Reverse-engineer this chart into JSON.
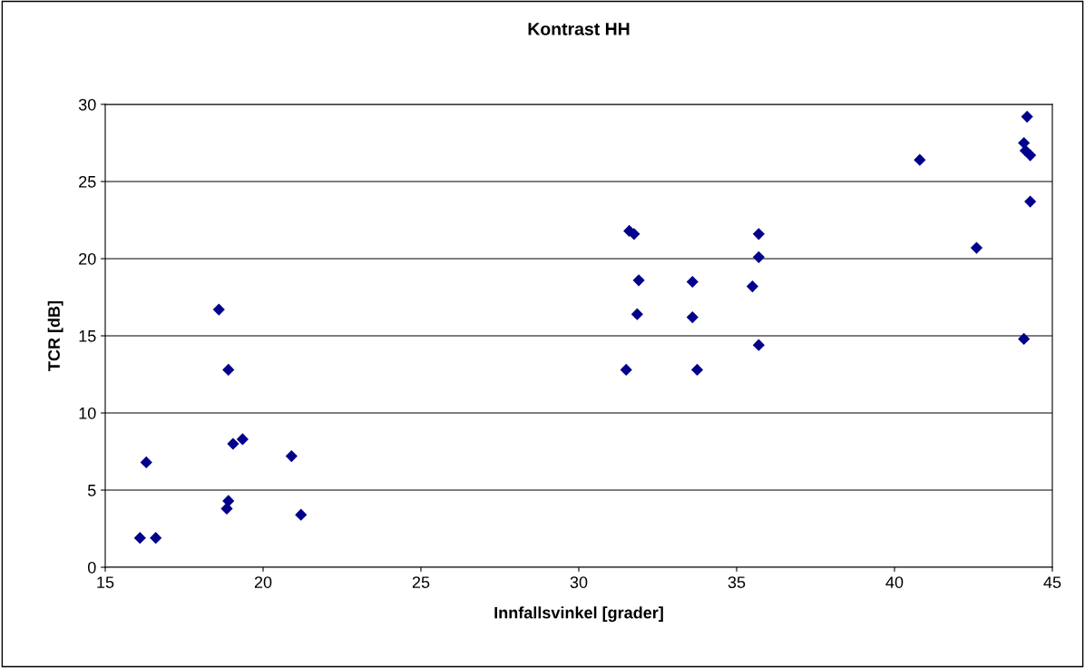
{
  "chart_data": {
    "type": "scatter",
    "title": "Kontrast HH",
    "xlabel": "Innfallsvinkel [grader]",
    "ylabel": "TCR [dB]",
    "x": [
      16.1,
      16.3,
      16.6,
      18.6,
      18.9,
      18.85,
      18.9,
      19.05,
      19.35,
      20.9,
      21.2,
      31.5,
      31.6,
      31.75,
      31.9,
      31.85,
      33.6,
      33.6,
      33.75,
      35.5,
      35.7,
      35.7,
      35.7,
      40.8,
      42.6,
      44.1,
      44.2,
      44.1,
      44.15,
      44.3,
      44.3
    ],
    "values": [
      1.9,
      6.8,
      1.9,
      16.7,
      12.8,
      3.8,
      4.3,
      8.0,
      8.3,
      7.2,
      3.4,
      12.8,
      21.8,
      21.6,
      18.6,
      16.4,
      18.5,
      16.2,
      12.8,
      18.2,
      21.6,
      20.1,
      14.4,
      26.4,
      20.7,
      14.8,
      29.2,
      27.5,
      27.0,
      26.7,
      23.7
    ],
    "color": "#00008b",
    "marker": "diamond",
    "xlim": [
      15,
      45
    ],
    "xticks": [
      15,
      20,
      25,
      30,
      35,
      40,
      45
    ],
    "ylim": [
      0,
      30
    ],
    "yticks": [
      0,
      5,
      10,
      15,
      20,
      25,
      30
    ],
    "grid": "y"
  }
}
